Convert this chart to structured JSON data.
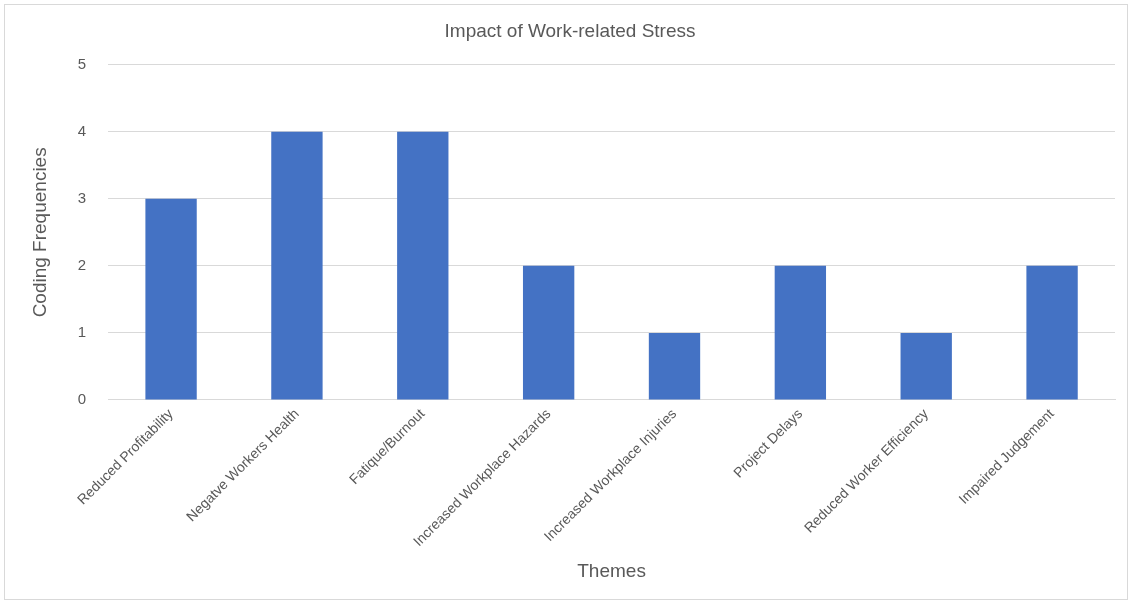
{
  "chart_data": {
    "type": "bar",
    "title": "Impact of Work-related Stress",
    "xlabel": "Themes",
    "ylabel": "Coding Frequencies",
    "categories": [
      "Reduced Profitability",
      "Negatve Workers Health",
      "Fatique/Burnout",
      "Increased Workplace Hazards",
      "Increased Workplace Injuries",
      "Project Delays",
      "Reduced Worker Efficiency",
      "Impaired Judgement"
    ],
    "values": [
      3,
      4,
      4,
      2,
      1,
      2,
      1,
      2
    ],
    "color": "#4472c4",
    "ylim": [
      0,
      5
    ],
    "yticks": [
      0,
      1,
      2,
      3,
      4,
      5
    ],
    "grid": "y",
    "legend": false
  }
}
